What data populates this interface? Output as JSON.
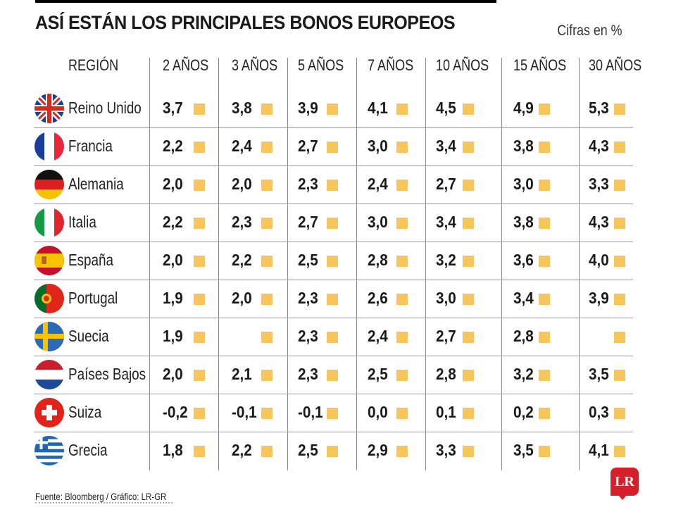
{
  "title": "ASÍ ESTÁN LOS PRINCIPALES BONOS EUROPEOS",
  "subtitle": "Cifras en %",
  "region_header": "REGIÓN",
  "source": "Fuente: Bloomberg / Gráfico: LR-GR",
  "logo_text": "LR",
  "colors": {
    "square": "#f6c65c",
    "logo": "#d4202a"
  },
  "chart_data": {
    "type": "table",
    "title": "ASÍ ESTÁN LOS PRINCIPALES BONOS EUROPEOS",
    "unit": "Cifras en %",
    "columns": [
      "2 AÑOS",
      "3 AÑOS",
      "5 AÑOS",
      "7 AÑOS",
      "10 AÑOS",
      "15 AÑOS",
      "30 AÑOS"
    ],
    "rows": [
      {
        "name": "Reino Unido",
        "flag": "uk-flag-icon",
        "values": [
          "3,7",
          "3,8",
          "3,9",
          "4,1",
          "4,5",
          "4,9",
          "5,3"
        ]
      },
      {
        "name": "Francia",
        "flag": "france-flag-icon",
        "values": [
          "2,2",
          "2,4",
          "2,7",
          "3,0",
          "3,4",
          "3,8",
          "4,3"
        ]
      },
      {
        "name": "Alemania",
        "flag": "germany-flag-icon",
        "values": [
          "2,0",
          "2,0",
          "2,3",
          "2,4",
          "2,7",
          "3,0",
          "3,3"
        ]
      },
      {
        "name": "Italia",
        "flag": "italy-flag-icon",
        "values": [
          "2,2",
          "2,3",
          "2,7",
          "3,0",
          "3,4",
          "3,8",
          "4,3"
        ]
      },
      {
        "name": "España",
        "flag": "spain-flag-icon",
        "values": [
          "2,0",
          "2,2",
          "2,5",
          "2,8",
          "3,2",
          "3,6",
          "4,0"
        ]
      },
      {
        "name": "Portugal",
        "flag": "portugal-flag-icon",
        "values": [
          "1,9",
          "2,0",
          "2,3",
          "2,6",
          "3,0",
          "3,4",
          "3,9"
        ]
      },
      {
        "name": "Suecia",
        "flag": "sweden-flag-icon",
        "values": [
          "1,9",
          "",
          "2,3",
          "2,4",
          "2,7",
          "2,8",
          ""
        ]
      },
      {
        "name": "Países Bajos",
        "flag": "netherlands-flag-icon",
        "values": [
          "2,0",
          "2,1",
          "2,3",
          "2,5",
          "2,8",
          "3,2",
          "3,5"
        ]
      },
      {
        "name": "Suiza",
        "flag": "switzerland-flag-icon",
        "values": [
          "-0,2",
          "-0,1",
          "-0,1",
          "0,0",
          "0,1",
          "0,2",
          "0,3"
        ]
      },
      {
        "name": "Grecia",
        "flag": "greece-flag-icon",
        "values": [
          "1,8",
          "2,2",
          "2,5",
          "2,9",
          "3,3",
          "3,5",
          "4,1"
        ]
      }
    ]
  }
}
